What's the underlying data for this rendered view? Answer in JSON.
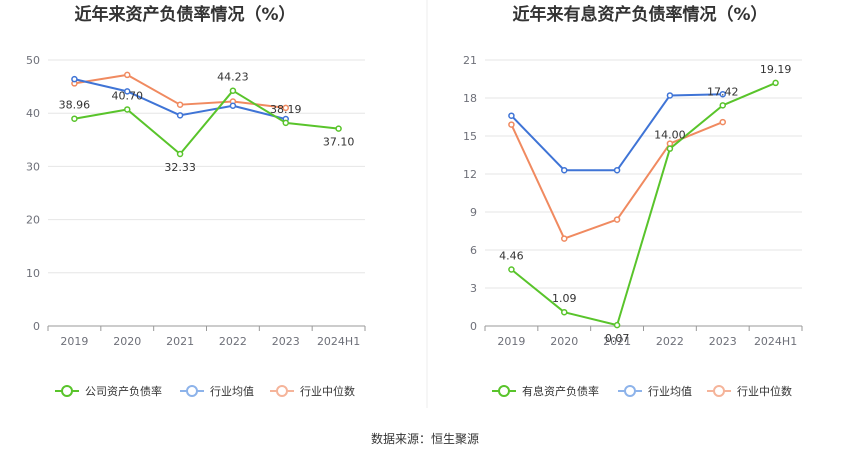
{
  "colors": {
    "company": "#59c42b",
    "industry_avg": "#3f74d6",
    "industry_median": "#f08a60",
    "legend_avg": "#8db3ea",
    "legend_median": "#f5b49a",
    "grid": "#e6e6e6",
    "axis": "#999999"
  },
  "legend_labels": {
    "left": [
      "公司资产负债率",
      "行业均值",
      "行业中位数"
    ],
    "right": [
      "有息资产负债率",
      "行业均值",
      "行业中位数"
    ]
  },
  "source_text": "数据来源：恒生聚源",
  "chart_data": [
    {
      "type": "line",
      "title": "近年来资产负债率情况（%）",
      "categories": [
        "2019",
        "2020",
        "2021",
        "2022",
        "2023",
        "2024H1"
      ],
      "ylim": [
        0,
        50
      ],
      "yticks": [
        0,
        10,
        20,
        30,
        40,
        50
      ],
      "grid": true,
      "legend_position": "bottom",
      "series": [
        {
          "name": "公司资产负债率",
          "values": [
            38.96,
            40.7,
            32.33,
            44.23,
            38.19,
            37.1
          ],
          "labels": [
            "38.96",
            "40.70",
            "32.33",
            "44.23",
            "38.19",
            "37.10"
          ]
        },
        {
          "name": "行业均值",
          "values": [
            46.4,
            44.1,
            39.6,
            41.4,
            38.9,
            null
          ]
        },
        {
          "name": "行业中位数",
          "values": [
            45.6,
            47.2,
            41.6,
            42.2,
            41.0,
            null
          ]
        }
      ]
    },
    {
      "type": "line",
      "title": "近年来有息资产负债率情况（%）",
      "categories": [
        "2019",
        "2020",
        "2021",
        "2022",
        "2023",
        "2024H1"
      ],
      "ylim": [
        0,
        21
      ],
      "yticks": [
        0,
        3,
        6,
        9,
        12,
        15,
        18,
        21
      ],
      "grid": true,
      "legend_position": "bottom",
      "series": [
        {
          "name": "有息资产负债率",
          "values": [
            4.46,
            1.09,
            0.07,
            14.0,
            17.42,
            19.19
          ],
          "labels": [
            "4.46",
            "1.09",
            "0.07",
            "14.00",
            "17.42",
            "19.19"
          ]
        },
        {
          "name": "行业均值",
          "values": [
            16.6,
            12.3,
            12.3,
            18.2,
            18.3,
            null
          ]
        },
        {
          "name": "行业中位数",
          "values": [
            15.9,
            6.9,
            8.4,
            14.4,
            16.1,
            null
          ]
        }
      ]
    }
  ]
}
